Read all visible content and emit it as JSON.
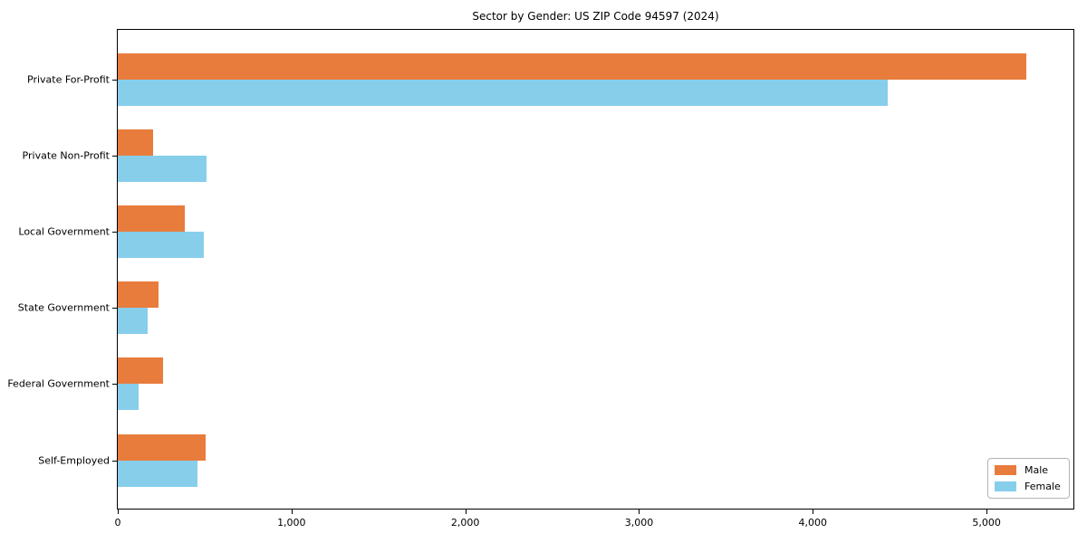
{
  "chart_data": {
    "type": "bar",
    "orientation": "horizontal",
    "title": "Sector by Gender: US ZIP Code 94597 (2024)",
    "categories": [
      "Private For-Profit",
      "Private Non-Profit",
      "Local Government",
      "State Government",
      "Federal Government",
      "Self-Employed"
    ],
    "series": [
      {
        "name": "Male",
        "color": "#e87c3c",
        "values": [
          5230,
          205,
          385,
          235,
          260,
          505
        ]
      },
      {
        "name": "Female",
        "color": "#87ceeb",
        "values": [
          4430,
          510,
          495,
          170,
          120,
          460
        ]
      }
    ],
    "xlabel": "",
    "ylabel": "",
    "xlim": [
      0,
      5500
    ],
    "xticks": [
      0,
      1000,
      2000,
      3000,
      4000,
      5000
    ],
    "xtick_labels": [
      "0",
      "1,000",
      "2,000",
      "3,000",
      "4,000",
      "5,000"
    ],
    "legend": {
      "position": "lower-right",
      "entries": [
        "Male",
        "Female"
      ]
    },
    "grid": false,
    "frame_color": "#000000",
    "background_color": "#ffffff",
    "text_color": "#000000"
  }
}
